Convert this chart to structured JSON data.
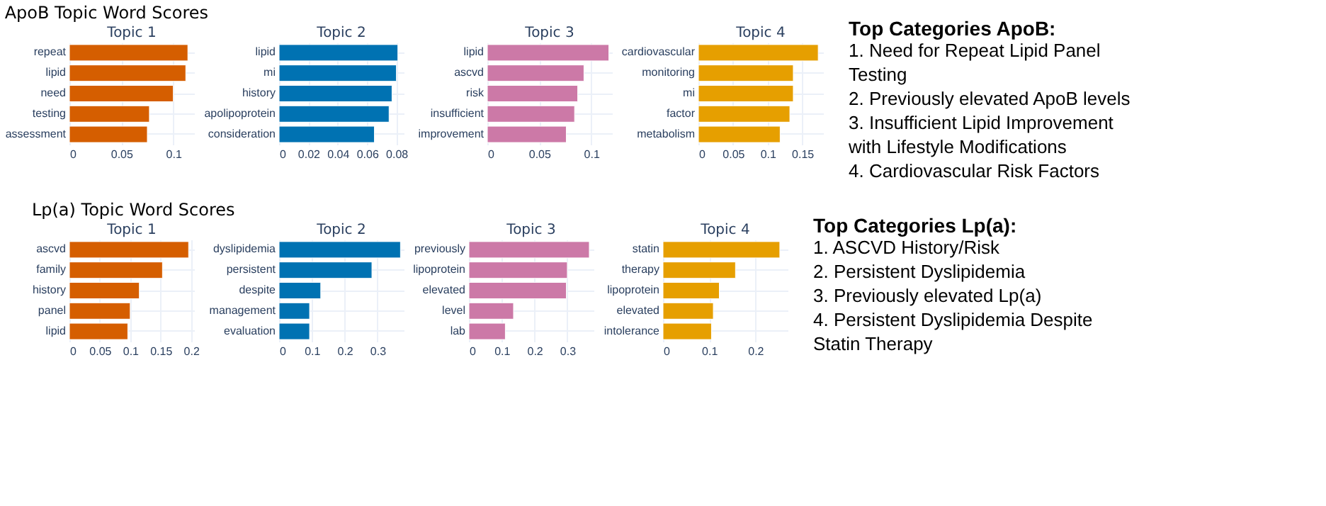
{
  "chart_data": [
    {
      "type": "other",
      "title": "ApoB Topic Word Scores"
    },
    {
      "type": "bar",
      "orientation": "horizontal",
      "title": "Topic 1",
      "categories": [
        "repeat",
        "lipid",
        "need",
        "testing",
        "assessment"
      ],
      "values": [
        0.114,
        0.112,
        0.1,
        0.077,
        0.075
      ],
      "color": "#d55e00",
      "xlim": [
        0,
        0.12
      ],
      "xticks": [
        0,
        0.05,
        0.1
      ],
      "grid": true
    },
    {
      "type": "bar",
      "orientation": "horizontal",
      "title": "Topic 2",
      "categories": [
        "lipid",
        "mi",
        "history",
        "apolipoprotein",
        "consideration"
      ],
      "values": [
        0.081,
        0.08,
        0.077,
        0.075,
        0.065
      ],
      "color": "#0072b2",
      "xlim": [
        0,
        0.085
      ],
      "xticks": [
        0,
        0.02,
        0.04,
        0.06,
        0.08
      ],
      "grid": true
    },
    {
      "type": "bar",
      "orientation": "horizontal",
      "title": "Topic 3",
      "categories": [
        "lipid",
        "ascvd",
        "risk",
        "insufficient",
        "improvement"
      ],
      "values": [
        0.117,
        0.093,
        0.087,
        0.084,
        0.076
      ],
      "color": "#cc79a7",
      "xlim": [
        0,
        0.12
      ],
      "xticks": [
        0,
        0.05,
        0.1
      ],
      "grid": true
    },
    {
      "type": "bar",
      "orientation": "horizontal",
      "title": "Topic 4",
      "categories": [
        "cardiovascular",
        "monitoring",
        "mi",
        "factor",
        "metabolism"
      ],
      "values": [
        0.173,
        0.137,
        0.137,
        0.132,
        0.118
      ],
      "color": "#e69f00",
      "xlim": [
        0,
        0.18
      ],
      "xticks": [
        0,
        0.05,
        0.1,
        0.15
      ],
      "grid": true
    },
    {
      "type": "other",
      "title": "Top Categories ApoB:",
      "annotations": [
        "1. Need for Repeat Lipid Panel Testing",
        "2. Previously elevated ApoB levels",
        "3. Insufficient Lipid Improvement with Lifestyle Modifications",
        "4. Cardiovascular Risk Factors"
      ]
    },
    {
      "type": "other",
      "title": "Lp(a) Topic Word Scores"
    },
    {
      "type": "bar",
      "orientation": "horizontal",
      "title": "Topic 1",
      "categories": [
        "ascvd",
        "family",
        "history",
        "panel",
        "lipid"
      ],
      "values": [
        0.196,
        0.153,
        0.115,
        0.1,
        0.096
      ],
      "color": "#d55e00",
      "xlim": [
        0,
        0.205
      ],
      "xticks": [
        0,
        0.05,
        0.1,
        0.15,
        0.2
      ],
      "grid": true
    },
    {
      "type": "bar",
      "orientation": "horizontal",
      "title": "Topic 2",
      "categories": [
        "dyslipidemia",
        "persistent",
        "despite",
        "management",
        "evaluation"
      ],
      "values": [
        0.37,
        0.283,
        0.127,
        0.093,
        0.093
      ],
      "color": "#0072b2",
      "xlim": [
        0,
        0.38
      ],
      "xticks": [
        0,
        0.1,
        0.2,
        0.3
      ],
      "grid": true
    },
    {
      "type": "bar",
      "orientation": "horizontal",
      "title": "Topic 3",
      "categories": [
        "previously",
        "lipoprotein",
        "elevated",
        "level",
        "lab"
      ],
      "values": [
        0.367,
        0.3,
        0.297,
        0.136,
        0.111
      ],
      "color": "#cc79a7",
      "xlim": [
        0,
        0.38
      ],
      "xticks": [
        0,
        0.1,
        0.2,
        0.3
      ],
      "grid": true
    },
    {
      "type": "bar",
      "orientation": "horizontal",
      "title": "Topic 4",
      "categories": [
        "statin",
        "therapy",
        "lipoprotein",
        "elevated",
        "intolerance"
      ],
      "values": [
        0.253,
        0.157,
        0.122,
        0.109,
        0.105
      ],
      "color": "#e69f00",
      "xlim": [
        0,
        0.27
      ],
      "xticks": [
        0,
        0.1,
        0.2
      ],
      "grid": true
    },
    {
      "type": "other",
      "title": "Top Categories Lp(a):",
      "annotations": [
        "1. ASCVD History/Risk",
        "2. Persistent Dyslipidemia",
        "3. Previously elevated Lp(a)",
        "4. Persistent Dyslipidemia Despite Statin Therapy"
      ]
    }
  ]
}
